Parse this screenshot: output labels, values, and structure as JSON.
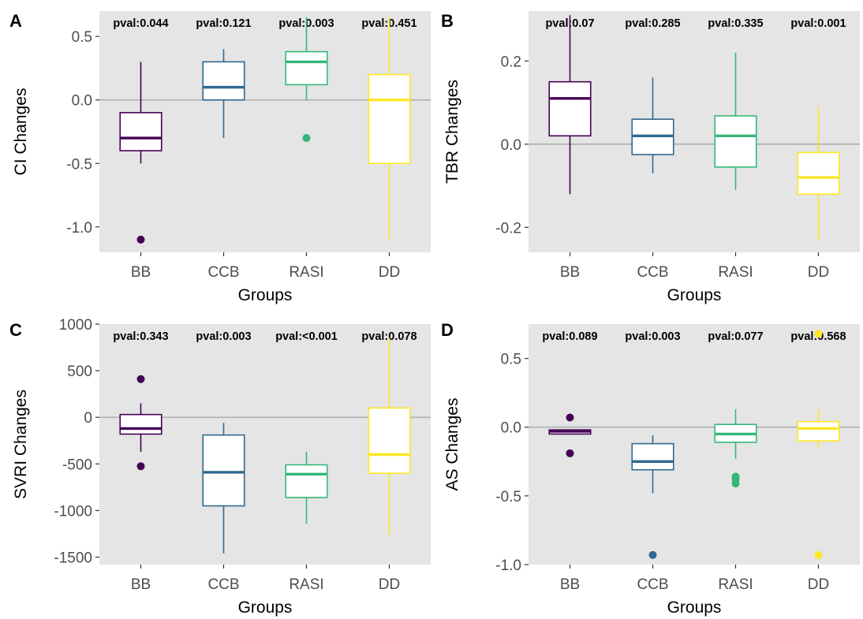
{
  "chart_data": [
    {
      "type": "box",
      "panel": "A",
      "xlabel": "Groups",
      "ylabel": "CI Changes",
      "ylim": [
        -1.2,
        0.7
      ],
      "yticks": [
        0.5,
        0.0,
        -0.5,
        -1.0
      ],
      "ytick_labels": [
        "0.5",
        "0.0",
        "-0.5",
        "-1.0"
      ],
      "reference_line": 0,
      "categories": [
        "BB",
        "CCB",
        "RASI",
        "DD"
      ],
      "pvals": [
        "pval:0.044",
        "pval:0.121",
        "pval:0.003",
        "pval:0.451"
      ],
      "boxes": [
        {
          "group": "BB",
          "color": "#440154",
          "min": -0.5,
          "q1": -0.4,
          "median": -0.3,
          "q3": -0.1,
          "max": 0.3,
          "outliers": [
            -1.1
          ]
        },
        {
          "group": "CCB",
          "color": "#31688E",
          "min": -0.3,
          "q1": 0.0,
          "median": 0.1,
          "q3": 0.3,
          "max": 0.4,
          "outliers": []
        },
        {
          "group": "RASI",
          "color": "#35B779",
          "min": 0.0,
          "q1": 0.12,
          "median": 0.3,
          "q3": 0.38,
          "max": 0.65,
          "outliers": [
            -0.3
          ]
        },
        {
          "group": "DD",
          "color": "#FDE725",
          "min": -1.1,
          "q1": -0.5,
          "median": 0.0,
          "q3": 0.2,
          "max": 0.65,
          "outliers": []
        }
      ]
    },
    {
      "type": "box",
      "panel": "B",
      "xlabel": "Groups",
      "ylabel": "TBR Changes",
      "ylim": [
        -0.26,
        0.32
      ],
      "yticks": [
        0.2,
        0.0,
        -0.2
      ],
      "ytick_labels": [
        "0.2",
        "0.0",
        "-0.2"
      ],
      "reference_line": 0,
      "categories": [
        "BB",
        "CCB",
        "RASI",
        "DD"
      ],
      "pvals": [
        "pval:0.07",
        "pval:0.285",
        "pval:0.335",
        "pval:0.001"
      ],
      "boxes": [
        {
          "group": "BB",
          "color": "#440154",
          "min": -0.12,
          "q1": 0.02,
          "median": 0.11,
          "q3": 0.15,
          "max": 0.31,
          "outliers": []
        },
        {
          "group": "CCB",
          "color": "#31688E",
          "min": -0.07,
          "q1": -0.025,
          "median": 0.02,
          "q3": 0.06,
          "max": 0.16,
          "outliers": []
        },
        {
          "group": "RASI",
          "color": "#35B779",
          "min": -0.11,
          "q1": -0.055,
          "median": 0.02,
          "q3": 0.068,
          "max": 0.22,
          "outliers": []
        },
        {
          "group": "DD",
          "color": "#FDE725",
          "min": -0.23,
          "q1": -0.12,
          "median": -0.08,
          "q3": -0.02,
          "max": 0.09,
          "outliers": []
        }
      ]
    },
    {
      "type": "box",
      "panel": "C",
      "xlabel": "Groups",
      "ylabel": "SVRI Changes",
      "ylim": [
        -1580,
        1000
      ],
      "yticks": [
        1000,
        500,
        0,
        -500,
        -1000,
        -1500
      ],
      "ytick_labels": [
        "1000",
        "500",
        "0",
        "-500",
        "-1000",
        "-1500"
      ],
      "reference_line": 0,
      "categories": [
        "BB",
        "CCB",
        "RASI",
        "DD"
      ],
      "pvals": [
        "pval:0.343",
        "pval:0.003",
        "pval:<0.001",
        "pval:0.078"
      ],
      "boxes": [
        {
          "group": "BB",
          "color": "#440154",
          "min": -370,
          "q1": -180,
          "median": -120,
          "q3": 30,
          "max": 150,
          "outliers": [
            410,
            -525
          ]
        },
        {
          "group": "CCB",
          "color": "#31688E",
          "min": -1460,
          "q1": -950,
          "median": -590,
          "q3": -190,
          "max": -60,
          "outliers": []
        },
        {
          "group": "RASI",
          "color": "#35B779",
          "min": -1140,
          "q1": -860,
          "median": -610,
          "q3": -510,
          "max": -370,
          "outliers": []
        },
        {
          "group": "DD",
          "color": "#FDE725",
          "min": -1260,
          "q1": -600,
          "median": -400,
          "q3": 100,
          "max": 850,
          "outliers": []
        }
      ]
    },
    {
      "type": "box",
      "panel": "D",
      "xlabel": "Groups",
      "ylabel": "AS Changes",
      "ylim": [
        -1.0,
        0.75
      ],
      "yticks": [
        0.5,
        0.0,
        -0.5,
        -1.0
      ],
      "ytick_labels": [
        "0.5",
        "0.0",
        "-0.5",
        "-1.0"
      ],
      "reference_line": 0,
      "categories": [
        "BB",
        "CCB",
        "RASI",
        "DD"
      ],
      "pvals": [
        "pval:0.089",
        "pval:0.003",
        "pval:0.077",
        "pval:0.568"
      ],
      "boxes": [
        {
          "group": "BB",
          "color": "#440154",
          "min": -0.05,
          "q1": -0.05,
          "median": -0.03,
          "q3": -0.02,
          "max": -0.02,
          "outliers": [
            0.07,
            -0.19
          ]
        },
        {
          "group": "CCB",
          "color": "#31688E",
          "min": -0.48,
          "q1": -0.31,
          "median": -0.25,
          "q3": -0.12,
          "max": -0.06,
          "outliers": [
            -0.93
          ]
        },
        {
          "group": "RASI",
          "color": "#35B779",
          "min": -0.23,
          "q1": -0.11,
          "median": -0.05,
          "q3": 0.02,
          "max": 0.13,
          "outliers": [
            -0.36,
            -0.38,
            -0.41
          ]
        },
        {
          "group": "DD",
          "color": "#FDE725",
          "min": -0.15,
          "q1": -0.1,
          "median": -0.01,
          "q3": 0.04,
          "max": 0.13,
          "outliers": [
            0.68,
            -0.93
          ]
        }
      ]
    }
  ]
}
